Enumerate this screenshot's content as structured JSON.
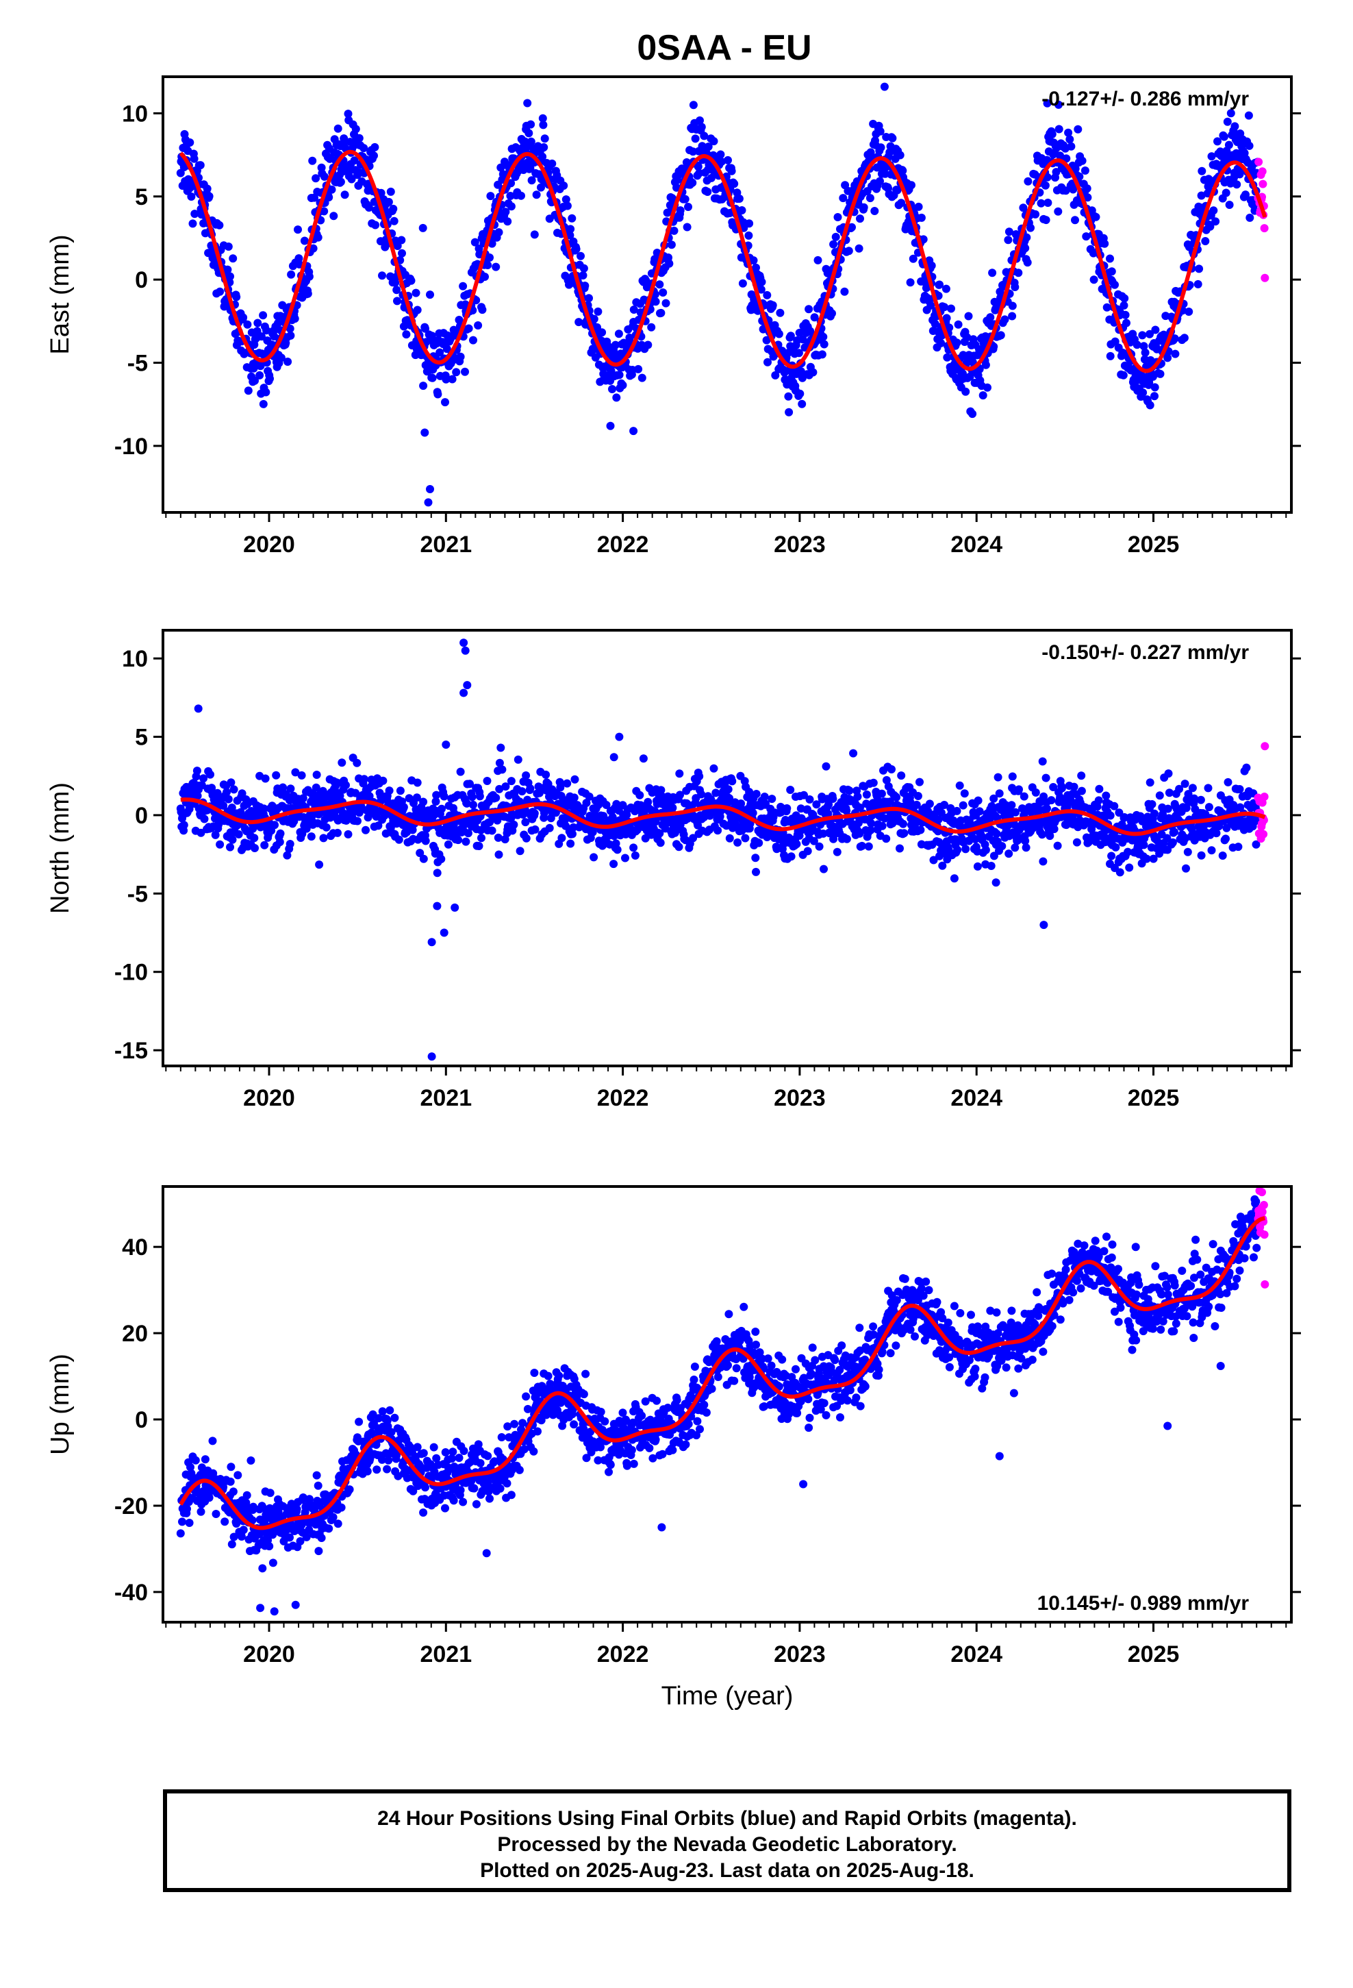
{
  "title": "0SAA - EU",
  "colors": {
    "final_orbits": "#0000ff",
    "rapid_orbits": "#ff00ff",
    "model_fit": "#ff0000",
    "frame": "#000000"
  },
  "footer": {
    "line1": "24 Hour Positions Using Final Orbits (blue) and Rapid Orbits (magenta).",
    "line2": "Processed by the Nevada Geodetic Laboratory.",
    "line3": "Plotted on 2025-Aug-23. Last data on 2025-Aug-18."
  },
  "chart_data": [
    {
      "type": "scatter",
      "name": "east",
      "ylabel": "East (mm)",
      "xlabel": "",
      "rate_text": "-0.127+/- 0.286 mm/yr",
      "rate_position": "top-right",
      "xlim": [
        2019.4,
        2025.78
      ],
      "ylim": [
        -14,
        12.2
      ],
      "xticks": [
        2020,
        2021,
        2022,
        2023,
        2024,
        2025
      ],
      "yticks": [
        -10,
        -5,
        0,
        5,
        10
      ],
      "fit": {
        "offset": 1.5,
        "trend": -0.127,
        "annual_amp": 6.3,
        "annual_peak": 0.46,
        "semi_amp": 0,
        "semi_peak": 0
      },
      "noise": 1.15,
      "start": 2019.5,
      "end_final": 2025.59,
      "end": 2025.63,
      "outliers": [
        [
          2020.9,
          -13.4
        ],
        [
          2020.91,
          -12.6
        ],
        [
          2020.88,
          -9.2
        ],
        [
          2020.87,
          3.1
        ],
        [
          2021.55,
          9.3
        ],
        [
          2022.06,
          -9.1
        ],
        [
          2021.93,
          -8.8
        ],
        [
          2022.4,
          10.5
        ],
        [
          2023.48,
          11.6
        ],
        [
          2024.4,
          10.6
        ],
        [
          2025.63,
          0.1
        ]
      ]
    },
    {
      "type": "scatter",
      "name": "north",
      "ylabel": "North (mm)",
      "xlabel": "",
      "rate_text": "-0.150+/- 0.227 mm/yr",
      "rate_position": "top-right",
      "xlim": [
        2019.4,
        2025.78
      ],
      "ylim": [
        -16,
        11.8
      ],
      "xticks": [
        2020,
        2021,
        2022,
        2023,
        2024,
        2025
      ],
      "yticks": [
        -15,
        -10,
        -5,
        0,
        5,
        10
      ],
      "fit": {
        "offset": 0.35,
        "trend": -0.15,
        "annual_amp": 0.6,
        "annual_peak": 0.45,
        "semi_amp": 0.2,
        "semi_peak": 0.1
      },
      "noise": 1.05,
      "start": 2019.5,
      "end_final": 2025.59,
      "end": 2025.63,
      "outliers": [
        [
          2021.1,
          11.0
        ],
        [
          2021.11,
          10.5
        ],
        [
          2021.12,
          8.3
        ],
        [
          2021.1,
          7.8
        ],
        [
          2020.92,
          -15.4
        ],
        [
          2020.92,
          -8.1
        ],
        [
          2020.99,
          -7.5
        ],
        [
          2021.05,
          -5.9
        ],
        [
          2020.95,
          -5.8
        ],
        [
          2021.0,
          4.5
        ],
        [
          2021.98,
          5.0
        ],
        [
          2021.95,
          3.7
        ],
        [
          2024.38,
          -7.0
        ],
        [
          2024.11,
          -4.3
        ],
        [
          2025.63,
          4.4
        ],
        [
          2019.6,
          6.8
        ]
      ]
    },
    {
      "type": "scatter",
      "name": "up",
      "ylabel": "Up (mm)",
      "xlabel": "Time (year)",
      "rate_text": "10.145+/- 0.989 mm/yr",
      "rate_position": "bottom-right",
      "xlim": [
        2019.4,
        2025.78
      ],
      "ylim": [
        -47,
        54
      ],
      "xticks": [
        2020,
        2021,
        2022,
        2023,
        2024,
        2025
      ],
      "yticks": [
        -40,
        -20,
        0,
        20,
        40
      ],
      "fit": {
        "offset": -25.0,
        "trend": 10.145,
        "annual_amp": 7.0,
        "annual_peak": 0.62,
        "semi_amp": 2.5,
        "semi_peak": 0.12
      },
      "noise": 3.5,
      "start": 2019.5,
      "end_final": 2025.59,
      "end": 2025.63,
      "outliers": [
        [
          2025.6,
          53.0
        ],
        [
          2025.58,
          50.5
        ],
        [
          2025.63,
          31.3
        ],
        [
          2025.38,
          12.4
        ],
        [
          2024.9,
          40.0
        ],
        [
          2025.08,
          -1.5
        ],
        [
          2024.13,
          -8.5
        ],
        [
          2023.02,
          -15.0
        ],
        [
          2022.22,
          -25.0
        ],
        [
          2021.23,
          -31.0
        ],
        [
          2019.95,
          -43.7
        ],
        [
          2020.03,
          -44.5
        ],
        [
          2020.15,
          -43.0
        ],
        [
          2021.5,
          10.8
        ],
        [
          2022.62,
          17.2
        ],
        [
          2023.5,
          29.8
        ]
      ]
    }
  ]
}
